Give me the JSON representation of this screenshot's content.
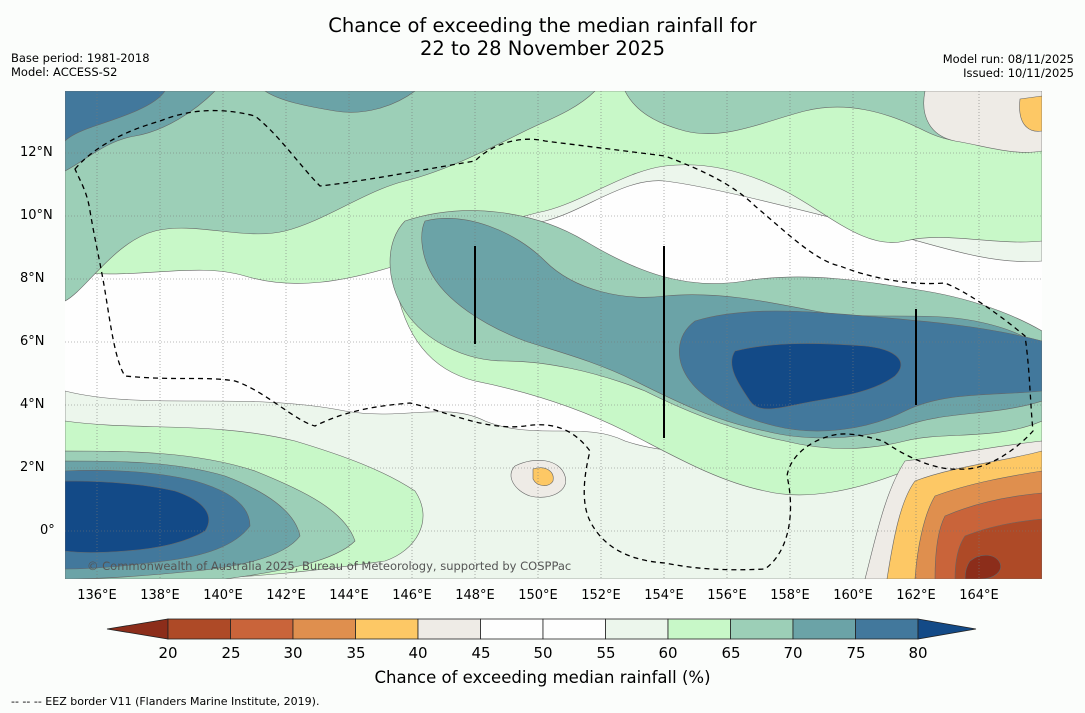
{
  "header": {
    "title_line1": "Chance of exceeding the median rainfall for",
    "title_line2": "22 to 28 November 2025",
    "base_period": "Base period: 1981-2018",
    "model": "Model: ACCESS-S2",
    "model_run": "Model run: 08/11/2025",
    "issued": "Issued: 10/11/2025"
  },
  "map": {
    "copyright": "© Commonwealth of Australia 2025, Bureau of Meteorology, supported by COSPPac",
    "lat_labels": [
      "12°N",
      "10°N",
      "8°N",
      "6°N",
      "4°N",
      "2°N",
      "0°"
    ],
    "lon_labels": [
      "136°E",
      "138°E",
      "140°E",
      "142°E",
      "144°E",
      "146°E",
      "148°E",
      "150°E",
      "152°E",
      "154°E",
      "156°E",
      "158°E",
      "160°E",
      "162°E",
      "164°E"
    ]
  },
  "colorbar": {
    "ticks": [
      "20",
      "25",
      "30",
      "35",
      "40",
      "45",
      "50",
      "55",
      "60",
      "65",
      "70",
      "75",
      "80"
    ],
    "colors": [
      "#8c2d1a",
      "#ae4a27",
      "#c9643a",
      "#df8f4e",
      "#fdc865",
      "#eeebe6",
      "#fefefe",
      "#fefefe",
      "#ecf6ec",
      "#c8f8c8",
      "#9ccfb7",
      "#6ba3a7",
      "#42789c",
      "#134a87"
    ],
    "title": "Chance of exceeding median rainfall (%)"
  },
  "footnote": "--  --  -- EEZ border V11 (Flanders Marine Institute, 2019)."
}
